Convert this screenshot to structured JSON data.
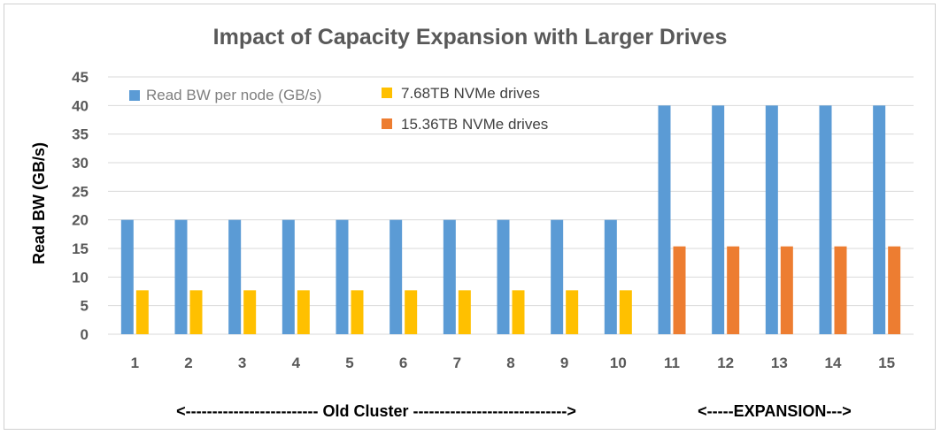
{
  "chart_data": {
    "type": "bar",
    "title": "Impact of Capacity Expansion with Larger Drives",
    "xlabel": "",
    "ylabel": "Read BW (GB/s)",
    "ylim": [
      0,
      45
    ],
    "yticks": [
      "0",
      "5",
      "10",
      "15",
      "20",
      "25",
      "30",
      "35",
      "40",
      "45"
    ],
    "categories": [
      "1",
      "2",
      "3",
      "4",
      "5",
      "6",
      "7",
      "8",
      "9",
      "10",
      "11",
      "12",
      "13",
      "14",
      "15"
    ],
    "grid": true,
    "legend_position": "top-left",
    "series": [
      {
        "name": "Read BW per node (GB/s)",
        "color": "#5b9bd5",
        "values": [
          20,
          20,
          20,
          20,
          20,
          20,
          20,
          20,
          20,
          20,
          40,
          40,
          40,
          40,
          40
        ]
      },
      {
        "name": "7.68TB NVMe drives",
        "color": "#ffc000",
        "values": [
          7.68,
          7.68,
          7.68,
          7.68,
          7.68,
          7.68,
          7.68,
          7.68,
          7.68,
          7.68,
          null,
          null,
          null,
          null,
          null
        ]
      },
      {
        "name": "15.36TB NVMe drives",
        "color": "#ed7d31",
        "values": [
          null,
          null,
          null,
          null,
          null,
          null,
          null,
          null,
          null,
          null,
          15.36,
          15.36,
          15.36,
          15.36,
          15.36
        ]
      }
    ],
    "annotations": {
      "old_cluster": "<------------------------- Old Cluster ----------------------------->",
      "expansion": "<-----EXPANSION--->"
    }
  }
}
